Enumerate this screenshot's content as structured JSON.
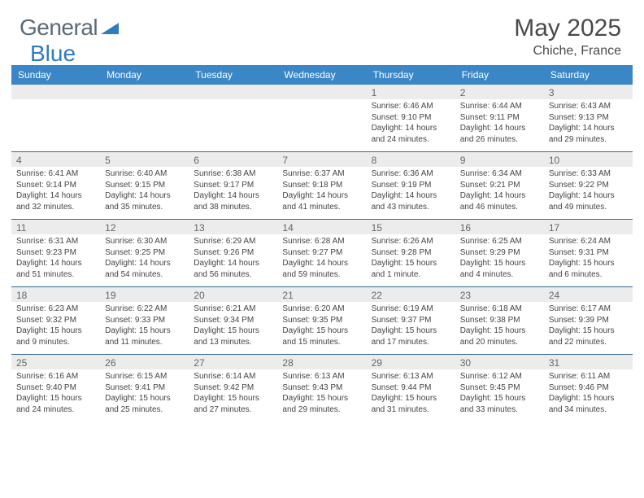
{
  "logo": {
    "word1": "General",
    "word2": "Blue"
  },
  "title": "May 2025",
  "location": "Chiche, France",
  "colors": {
    "header_bar": "#3b86c7",
    "daynum_bg": "#ececec",
    "week_border": "#3b6a94",
    "logo_gray": "#5a6a78",
    "logo_blue": "#2f7bbf",
    "text": "#4a4a4a"
  },
  "weekdays": [
    "Sunday",
    "Monday",
    "Tuesday",
    "Wednesday",
    "Thursday",
    "Friday",
    "Saturday"
  ],
  "weeks": [
    [
      null,
      null,
      null,
      null,
      {
        "n": "1",
        "sr": "6:46 AM",
        "ss": "9:10 PM",
        "dl": "14 hours and 24 minutes."
      },
      {
        "n": "2",
        "sr": "6:44 AM",
        "ss": "9:11 PM",
        "dl": "14 hours and 26 minutes."
      },
      {
        "n": "3",
        "sr": "6:43 AM",
        "ss": "9:13 PM",
        "dl": "14 hours and 29 minutes."
      }
    ],
    [
      {
        "n": "4",
        "sr": "6:41 AM",
        "ss": "9:14 PM",
        "dl": "14 hours and 32 minutes."
      },
      {
        "n": "5",
        "sr": "6:40 AM",
        "ss": "9:15 PM",
        "dl": "14 hours and 35 minutes."
      },
      {
        "n": "6",
        "sr": "6:38 AM",
        "ss": "9:17 PM",
        "dl": "14 hours and 38 minutes."
      },
      {
        "n": "7",
        "sr": "6:37 AM",
        "ss": "9:18 PM",
        "dl": "14 hours and 41 minutes."
      },
      {
        "n": "8",
        "sr": "6:36 AM",
        "ss": "9:19 PM",
        "dl": "14 hours and 43 minutes."
      },
      {
        "n": "9",
        "sr": "6:34 AM",
        "ss": "9:21 PM",
        "dl": "14 hours and 46 minutes."
      },
      {
        "n": "10",
        "sr": "6:33 AM",
        "ss": "9:22 PM",
        "dl": "14 hours and 49 minutes."
      }
    ],
    [
      {
        "n": "11",
        "sr": "6:31 AM",
        "ss": "9:23 PM",
        "dl": "14 hours and 51 minutes."
      },
      {
        "n": "12",
        "sr": "6:30 AM",
        "ss": "9:25 PM",
        "dl": "14 hours and 54 minutes."
      },
      {
        "n": "13",
        "sr": "6:29 AM",
        "ss": "9:26 PM",
        "dl": "14 hours and 56 minutes."
      },
      {
        "n": "14",
        "sr": "6:28 AM",
        "ss": "9:27 PM",
        "dl": "14 hours and 59 minutes."
      },
      {
        "n": "15",
        "sr": "6:26 AM",
        "ss": "9:28 PM",
        "dl": "15 hours and 1 minute."
      },
      {
        "n": "16",
        "sr": "6:25 AM",
        "ss": "9:29 PM",
        "dl": "15 hours and 4 minutes."
      },
      {
        "n": "17",
        "sr": "6:24 AM",
        "ss": "9:31 PM",
        "dl": "15 hours and 6 minutes."
      }
    ],
    [
      {
        "n": "18",
        "sr": "6:23 AM",
        "ss": "9:32 PM",
        "dl": "15 hours and 9 minutes."
      },
      {
        "n": "19",
        "sr": "6:22 AM",
        "ss": "9:33 PM",
        "dl": "15 hours and 11 minutes."
      },
      {
        "n": "20",
        "sr": "6:21 AM",
        "ss": "9:34 PM",
        "dl": "15 hours and 13 minutes."
      },
      {
        "n": "21",
        "sr": "6:20 AM",
        "ss": "9:35 PM",
        "dl": "15 hours and 15 minutes."
      },
      {
        "n": "22",
        "sr": "6:19 AM",
        "ss": "9:37 PM",
        "dl": "15 hours and 17 minutes."
      },
      {
        "n": "23",
        "sr": "6:18 AM",
        "ss": "9:38 PM",
        "dl": "15 hours and 20 minutes."
      },
      {
        "n": "24",
        "sr": "6:17 AM",
        "ss": "9:39 PM",
        "dl": "15 hours and 22 minutes."
      }
    ],
    [
      {
        "n": "25",
        "sr": "6:16 AM",
        "ss": "9:40 PM",
        "dl": "15 hours and 24 minutes."
      },
      {
        "n": "26",
        "sr": "6:15 AM",
        "ss": "9:41 PM",
        "dl": "15 hours and 25 minutes."
      },
      {
        "n": "27",
        "sr": "6:14 AM",
        "ss": "9:42 PM",
        "dl": "15 hours and 27 minutes."
      },
      {
        "n": "28",
        "sr": "6:13 AM",
        "ss": "9:43 PM",
        "dl": "15 hours and 29 minutes."
      },
      {
        "n": "29",
        "sr": "6:13 AM",
        "ss": "9:44 PM",
        "dl": "15 hours and 31 minutes."
      },
      {
        "n": "30",
        "sr": "6:12 AM",
        "ss": "9:45 PM",
        "dl": "15 hours and 33 minutes."
      },
      {
        "n": "31",
        "sr": "6:11 AM",
        "ss": "9:46 PM",
        "dl": "15 hours and 34 minutes."
      }
    ]
  ],
  "labels": {
    "sunrise": "Sunrise: ",
    "sunset": "Sunset: ",
    "daylight": "Daylight: "
  }
}
